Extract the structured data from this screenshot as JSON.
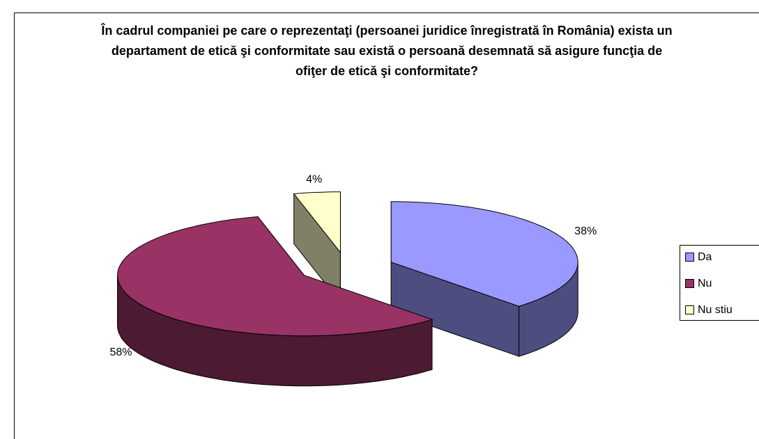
{
  "chart_data": {
    "type": "pie3d",
    "title": "În cadrul companiei pe care o reprezentaţi (persoanei juridice înregistrată în România) exista un departament de etică şi conformitate sau există o persoană desemnată să asigure funcţia de ofiţer de etică şi conformitate?",
    "categories": [
      "Da",
      "Nu",
      "Nu stiu"
    ],
    "values": [
      38,
      58,
      4
    ],
    "value_labels": [
      "38%",
      "58%",
      "4%"
    ],
    "colors": [
      "#9999ff",
      "#993366",
      "#ffffcc"
    ],
    "legend": "right"
  }
}
